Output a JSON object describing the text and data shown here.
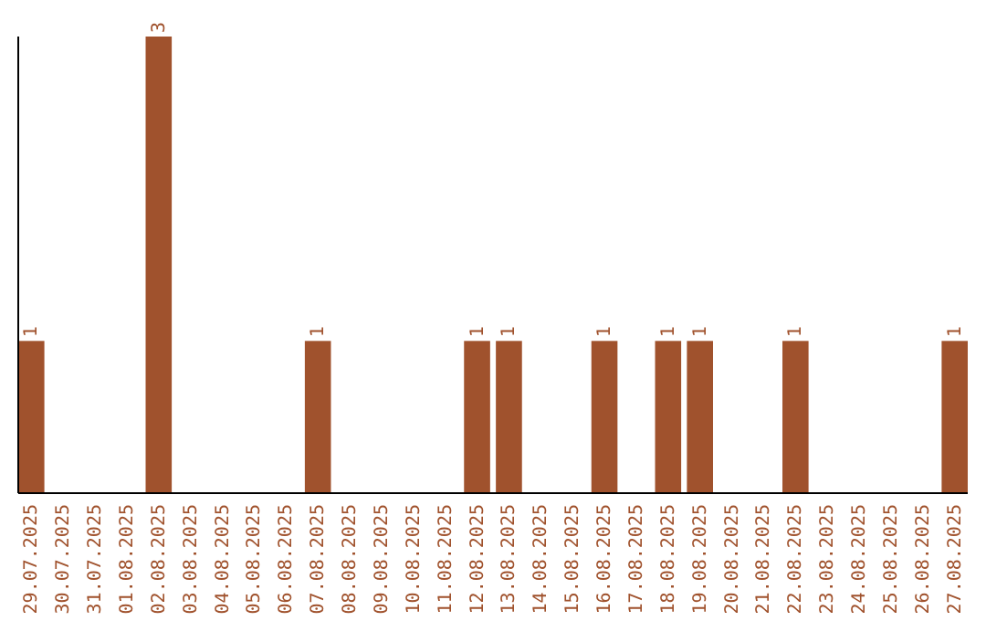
{
  "chart_data": {
    "type": "bar",
    "categories": [
      "29.07.2025",
      "30.07.2025",
      "31.07.2025",
      "01.08.2025",
      "02.08.2025",
      "03.08.2025",
      "04.08.2025",
      "05.08.2025",
      "06.08.2025",
      "07.08.2025",
      "08.08.2025",
      "09.08.2025",
      "10.08.2025",
      "11.08.2025",
      "12.08.2025",
      "13.08.2025",
      "14.08.2025",
      "15.08.2025",
      "16.08.2025",
      "17.08.2025",
      "18.08.2025",
      "19.08.2025",
      "20.08.2025",
      "21.08.2025",
      "22.08.2025",
      "23.08.2025",
      "24.08.2025",
      "25.08.2025",
      "26.08.2025",
      "27.08.2025"
    ],
    "values": [
      1,
      0,
      0,
      0,
      3,
      0,
      0,
      0,
      0,
      1,
      0,
      0,
      0,
      0,
      1,
      1,
      0,
      0,
      1,
      0,
      1,
      1,
      0,
      0,
      1,
      0,
      0,
      0,
      0,
      1
    ],
    "value_labels": [
      "1",
      null,
      null,
      null,
      "3",
      null,
      null,
      null,
      null,
      "1",
      null,
      null,
      null,
      null,
      "1",
      "1",
      null,
      null,
      "1",
      null,
      "1",
      "1",
      null,
      null,
      "1",
      null,
      null,
      null,
      null,
      "1"
    ],
    "color": "#a0522d",
    "ylim": [
      0,
      3
    ],
    "tick_labels": "x"
  }
}
